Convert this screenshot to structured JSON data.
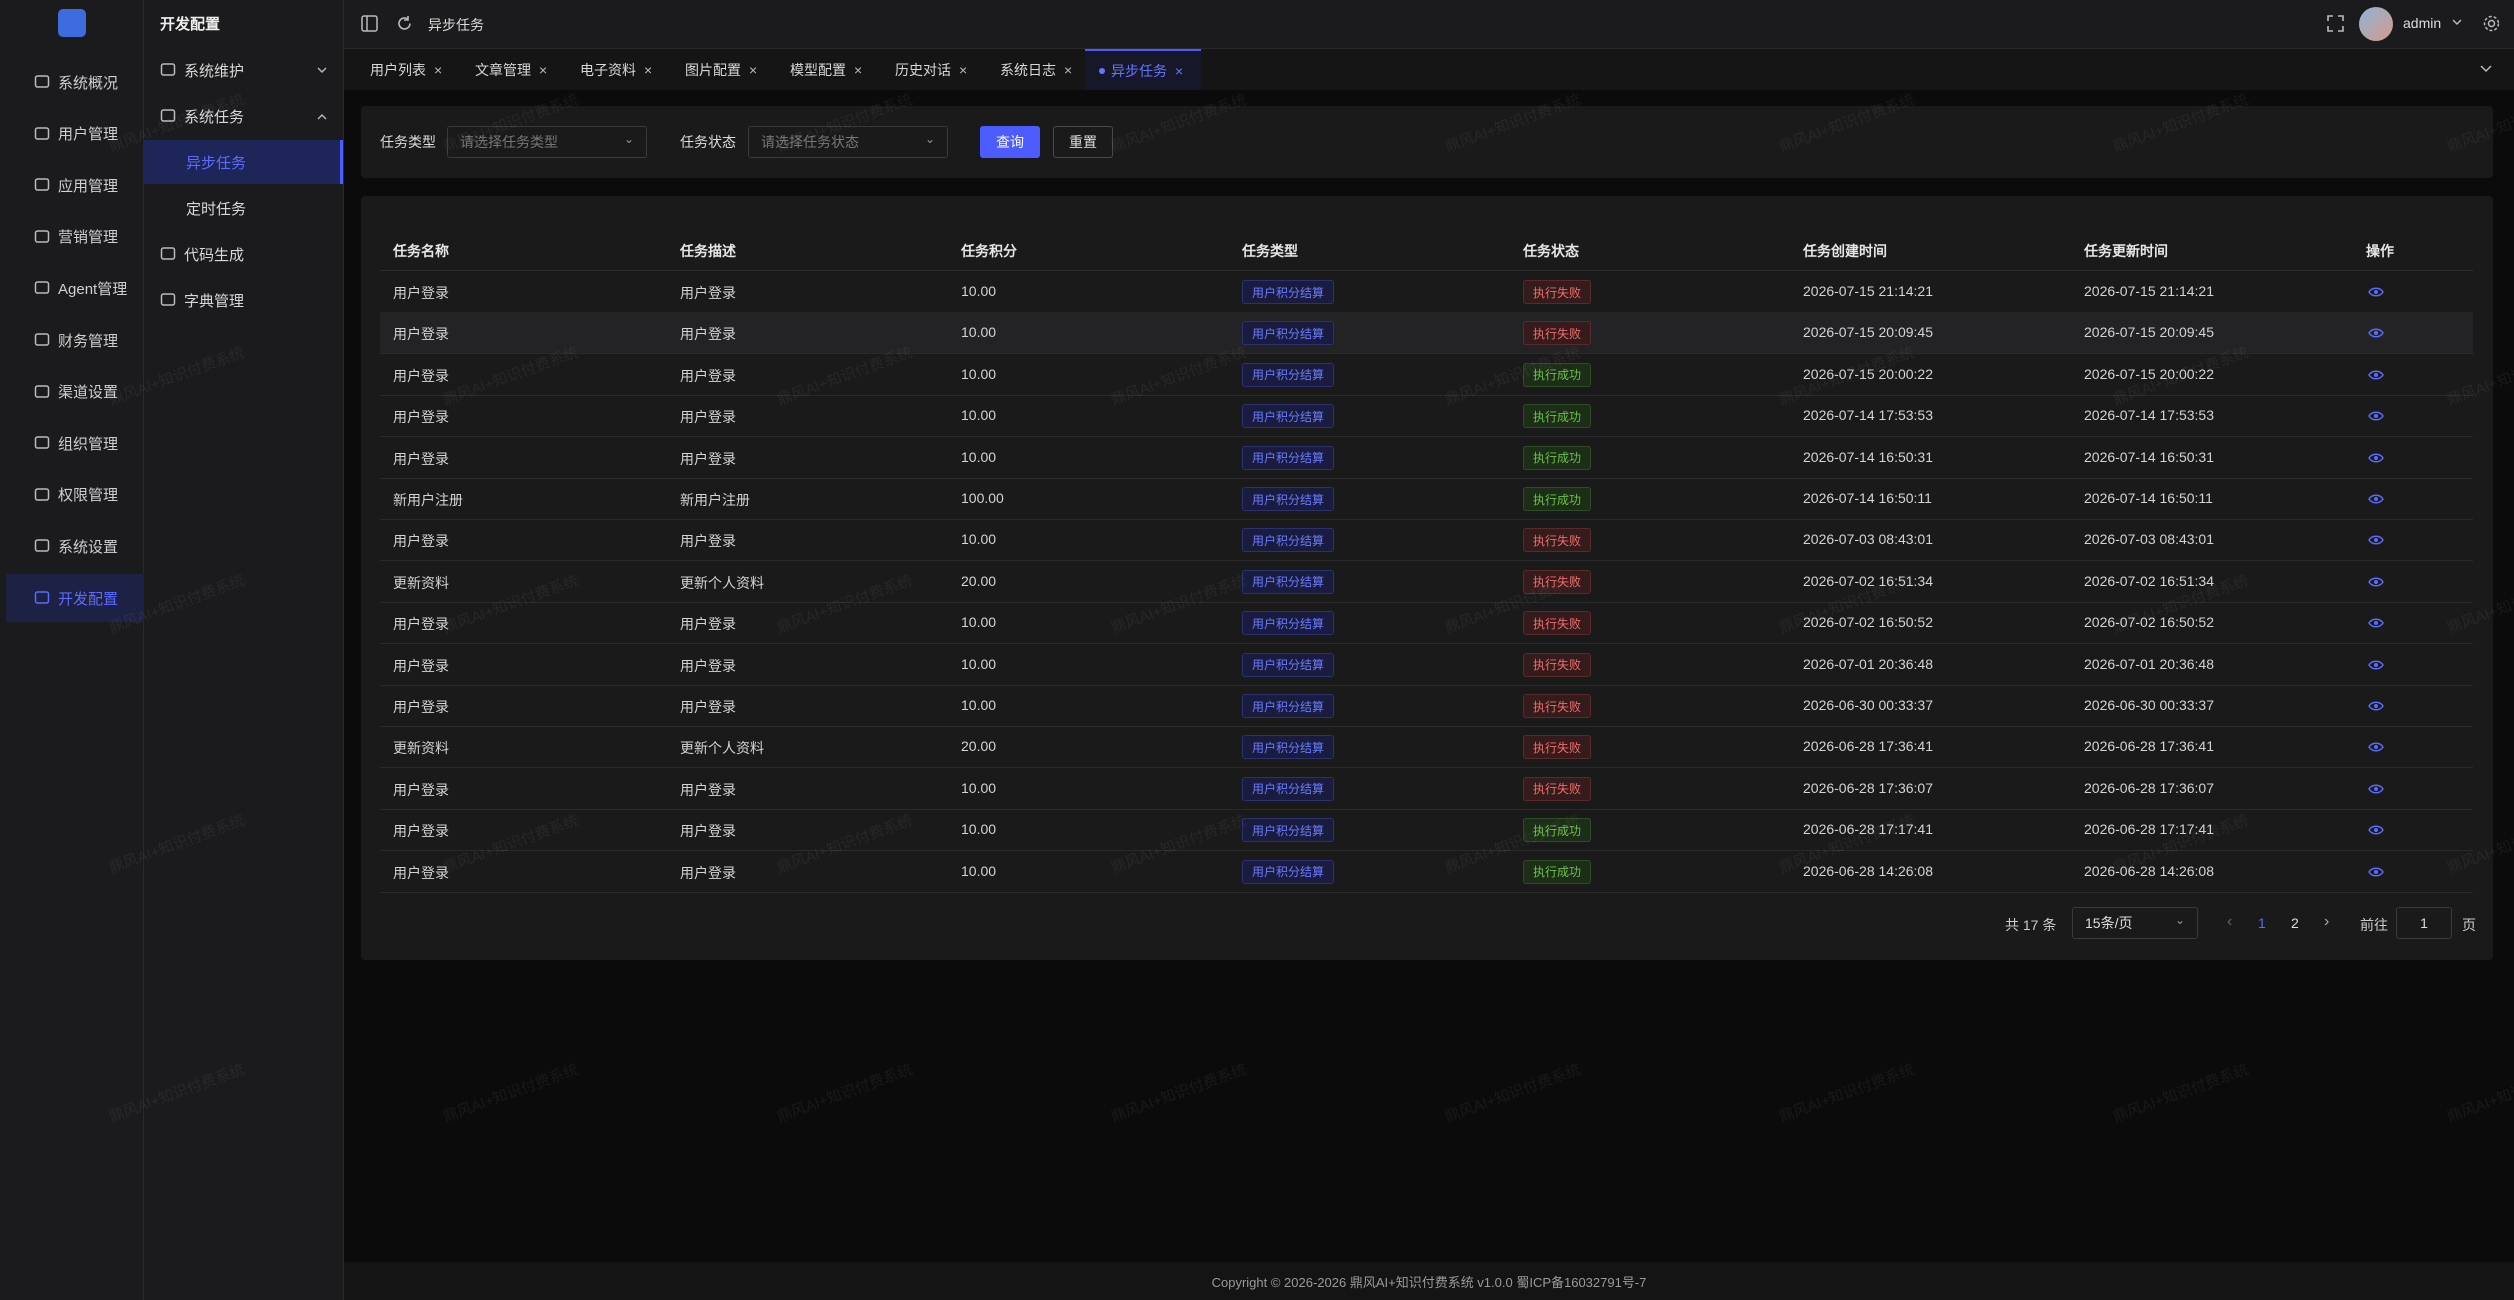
{
  "sidebar": {
    "menu": [
      "系统概况",
      "用户管理",
      "应用管理",
      "营销管理",
      "Agent管理",
      "财务管理",
      "渠道设置",
      "组织管理",
      "权限管理",
      "系统设置",
      "开发配置"
    ],
    "active": 10
  },
  "submenu": {
    "title": "开发配置",
    "items": [
      {
        "label": "系统维护",
        "arrow": "down"
      },
      {
        "label": "系统任务",
        "arrow": "up"
      },
      {
        "label": "异步任务",
        "level": 2,
        "active": true
      },
      {
        "label": "定时任务",
        "level": 2
      },
      {
        "label": "代码生成"
      },
      {
        "label": "字典管理"
      }
    ]
  },
  "header": {
    "page": "异步任务",
    "user": "admin"
  },
  "tabs": {
    "items": [
      "用户列表",
      "文章管理",
      "电子资料",
      "图片配置",
      "模型配置",
      "历史对话",
      "系统日志",
      "异步任务"
    ],
    "active": 7
  },
  "filters": {
    "fields": [
      {
        "label": "任务类型",
        "placeholder": "请选择任务类型"
      },
      {
        "label": "任务状态",
        "placeholder": "请选择任务状态"
      }
    ],
    "buttons": [
      "查询",
      "重置"
    ]
  },
  "table": {
    "columns": [
      "任务名称",
      "任务描述",
      "任务积分",
      "任务类型",
      "任务状态",
      "任务创建时间",
      "任务更新时间",
      "操作"
    ],
    "hover_row": 1,
    "rows": [
      [
        "用户登录",
        "用户登录",
        "10.00",
        "用户积分结算",
        {
          "text": "执行失败",
          "tone": "danger"
        },
        "2026-07-15 21:14:21",
        "2026-07-15 21:14:21"
      ],
      [
        "用户登录",
        "用户登录",
        "10.00",
        "用户积分结算",
        {
          "text": "执行失败",
          "tone": "danger"
        },
        "2026-07-15 20:09:45",
        "2026-07-15 20:09:45"
      ],
      [
        "用户登录",
        "用户登录",
        "10.00",
        "用户积分结算",
        {
          "text": "执行成功",
          "tone": "success"
        },
        "2026-07-15 20:00:22",
        "2026-07-15 20:00:22"
      ],
      [
        "用户登录",
        "用户登录",
        "10.00",
        "用户积分结算",
        {
          "text": "执行成功",
          "tone": "success"
        },
        "2026-07-14 17:53:53",
        "2026-07-14 17:53:53"
      ],
      [
        "用户登录",
        "用户登录",
        "10.00",
        "用户积分结算",
        {
          "text": "执行成功",
          "tone": "success"
        },
        "2026-07-14 16:50:31",
        "2026-07-14 16:50:31"
      ],
      [
        "新用户注册",
        "新用户注册",
        "100.00",
        "用户积分结算",
        {
          "text": "执行成功",
          "tone": "success"
        },
        "2026-07-14 16:50:11",
        "2026-07-14 16:50:11"
      ],
      [
        "用户登录",
        "用户登录",
        "10.00",
        "用户积分结算",
        {
          "text": "执行失败",
          "tone": "danger"
        },
        "2026-07-03 08:43:01",
        "2026-07-03 08:43:01"
      ],
      [
        "更新资料",
        "更新个人资料",
        "20.00",
        "用户积分结算",
        {
          "text": "执行失败",
          "tone": "danger"
        },
        "2026-07-02 16:51:34",
        "2026-07-02 16:51:34"
      ],
      [
        "用户登录",
        "用户登录",
        "10.00",
        "用户积分结算",
        {
          "text": "执行失败",
          "tone": "danger"
        },
        "2026-07-02 16:50:52",
        "2026-07-02 16:50:52"
      ],
      [
        "用户登录",
        "用户登录",
        "10.00",
        "用户积分结算",
        {
          "text": "执行失败",
          "tone": "danger"
        },
        "2026-07-01 20:36:48",
        "2026-07-01 20:36:48"
      ],
      [
        "用户登录",
        "用户登录",
        "10.00",
        "用户积分结算",
        {
          "text": "执行失败",
          "tone": "danger"
        },
        "2026-06-30 00:33:37",
        "2026-06-30 00:33:37"
      ],
      [
        "更新资料",
        "更新个人资料",
        "20.00",
        "用户积分结算",
        {
          "text": "执行失败",
          "tone": "danger"
        },
        "2026-06-28 17:36:41",
        "2026-06-28 17:36:41"
      ],
      [
        "用户登录",
        "用户登录",
        "10.00",
        "用户积分结算",
        {
          "text": "执行失败",
          "tone": "danger"
        },
        "2026-06-28 17:36:07",
        "2026-06-28 17:36:07"
      ],
      [
        "用户登录",
        "用户登录",
        "10.00",
        "用户积分结算",
        {
          "text": "执行成功",
          "tone": "success"
        },
        "2026-06-28 17:17:41",
        "2026-06-28 17:17:41"
      ],
      [
        "用户登录",
        "用户登录",
        "10.00",
        "用户积分结算",
        {
          "text": "执行成功",
          "tone": "success"
        },
        "2026-06-28 14:26:08",
        "2026-06-28 14:26:08"
      ]
    ]
  },
  "pagination": {
    "total": "共 17 条",
    "page_size": "15条/页",
    "pages": [
      "1",
      "2"
    ],
    "current": 0,
    "goto": "前往",
    "goto_value": "1",
    "goto_unit": "页"
  },
  "footer": {
    "copyright": "Copyright © 2026-2026 鼎风AI+知识付费系统 v1.0.0  蜀ICP备16032791号-7"
  },
  "watermark": "鼎风AI+知识付费系统"
}
